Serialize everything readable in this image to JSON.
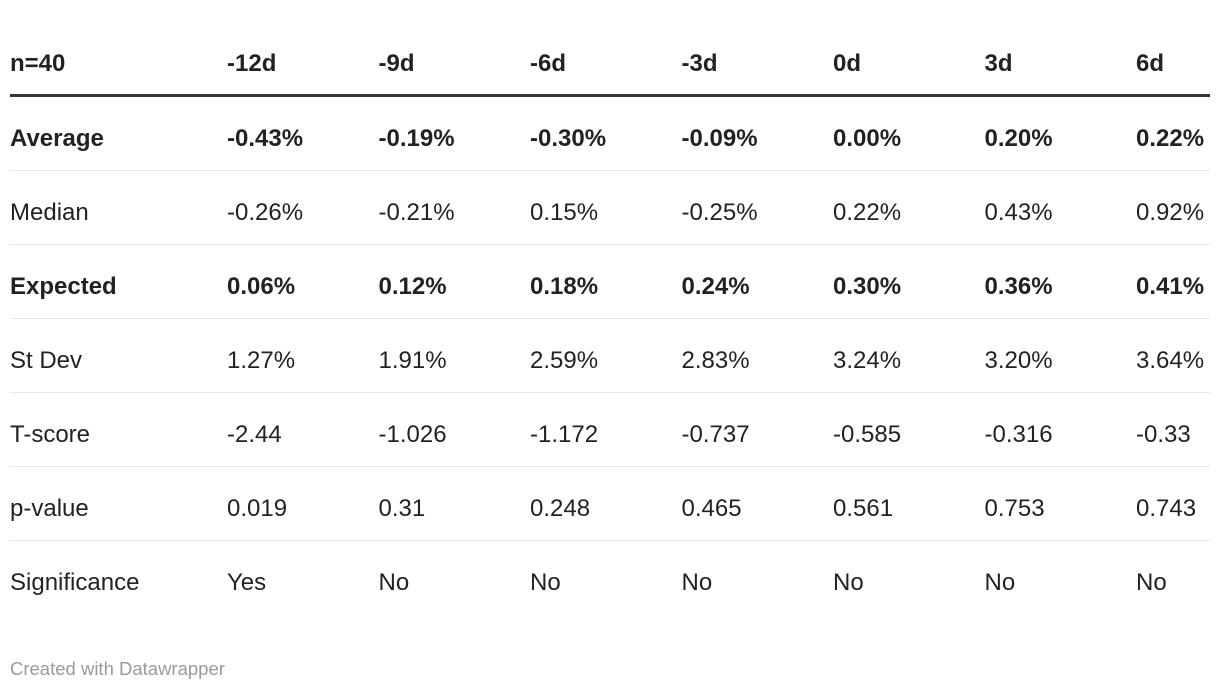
{
  "chart_data": {
    "type": "table",
    "title": "n=40",
    "header": [
      "n=40",
      "-12d",
      "-9d",
      "-6d",
      "-3d",
      "0d",
      "3d",
      "6d"
    ],
    "rows": [
      {
        "label": "Average",
        "bold": true,
        "values": [
          "-0.43%",
          "-0.19%",
          "-0.30%",
          "-0.09%",
          "0.00%",
          "0.20%",
          "0.22%"
        ]
      },
      {
        "label": "Median",
        "bold": false,
        "values": [
          "-0.26%",
          "-0.21%",
          "0.15%",
          "-0.25%",
          "0.22%",
          "0.43%",
          "0.92%"
        ]
      },
      {
        "label": "Expected",
        "bold": true,
        "values": [
          "0.06%",
          "0.12%",
          "0.18%",
          "0.24%",
          "0.30%",
          "0.36%",
          "0.41%"
        ]
      },
      {
        "label": "St Dev",
        "bold": false,
        "values": [
          "1.27%",
          "1.91%",
          "2.59%",
          "2.83%",
          "3.24%",
          "3.20%",
          "3.64%"
        ]
      },
      {
        "label": "T-score",
        "bold": false,
        "values": [
          "-2.44",
          "-1.026",
          "-1.172",
          "-0.737",
          "-0.585",
          "-0.316",
          "-0.33"
        ]
      },
      {
        "label": "p-value",
        "bold": false,
        "values": [
          "0.019",
          "0.31",
          "0.248",
          "0.465",
          "0.561",
          "0.753",
          "0.743"
        ]
      },
      {
        "label": "Significance",
        "bold": false,
        "values": [
          "Yes",
          "No",
          "No",
          "No",
          "No",
          "No",
          "No"
        ]
      }
    ],
    "layout_hints": {
      "grid": "horizontal-row-separators",
      "emphasized_rows": [
        "Average",
        "Expected"
      ]
    }
  },
  "footer": {
    "attribution": "Created with Datawrapper"
  },
  "colors": {
    "text": "#222222",
    "header_border": "#333333",
    "row_border": "#e8e8e8",
    "footer_text": "#9a9a9a",
    "background": "#ffffff"
  }
}
